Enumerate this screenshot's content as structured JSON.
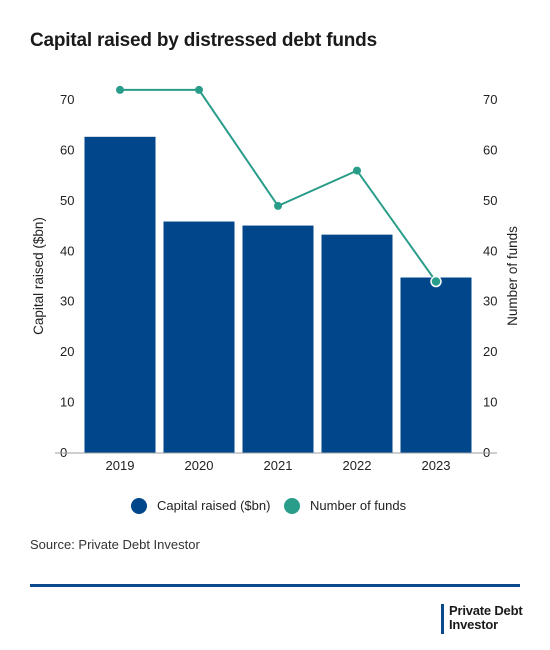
{
  "chart_data": {
    "type": "bar",
    "title": "Capital raised by distressed debt funds",
    "categories": [
      "2019",
      "2020",
      "2021",
      "2022",
      "2023"
    ],
    "series": [
      {
        "name": "Capital raised ($bn)",
        "type": "bar",
        "axis": "left",
        "values": [
          62.7,
          45.9,
          45.1,
          43.3,
          34.8
        ],
        "color": "#00468b"
      },
      {
        "name": "Number of funds",
        "type": "line",
        "axis": "right",
        "values": [
          72,
          72,
          49,
          56,
          34
        ],
        "color": "#2a9d8a"
      }
    ],
    "ylabel": "Capital raised ($bn)",
    "y2label": "Number of funds",
    "ylim": [
      0,
      70
    ],
    "y2lim": [
      0,
      70
    ],
    "yticks": [
      0,
      10,
      20,
      30,
      40,
      50,
      60,
      70
    ],
    "y2ticks": [
      0,
      10,
      20,
      30,
      40,
      50,
      60,
      70
    ],
    "grid": false,
    "legend_position": "bottom-center"
  },
  "source": "Source: Private Debt Investor",
  "logo": {
    "line1": "Private Debt",
    "line2": "Investor"
  }
}
